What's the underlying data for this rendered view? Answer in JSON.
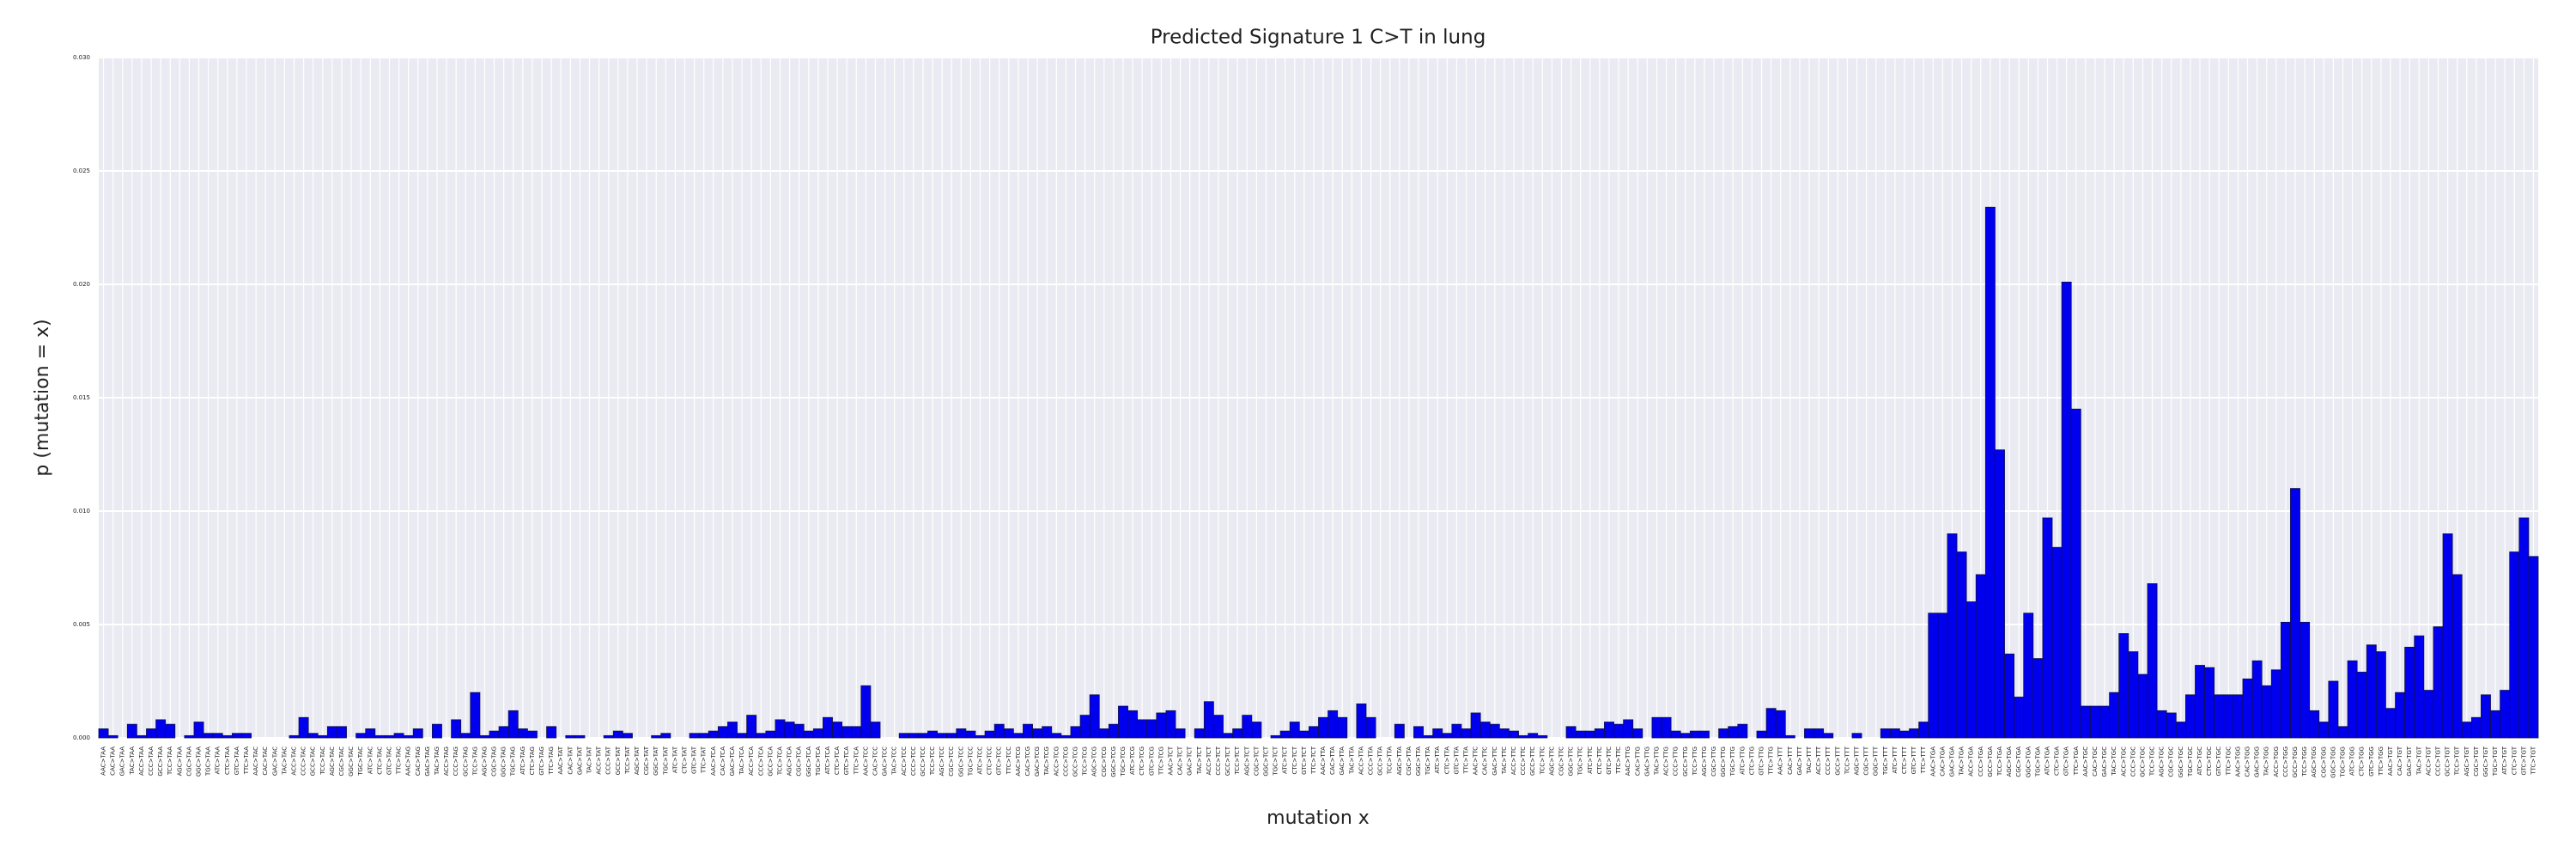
{
  "chart_data": {
    "type": "bar",
    "title": "Predicted Signature 1 C>T in lung",
    "xlabel": "mutation x",
    "ylabel": "p (mutation = x)",
    "color": "#0000ee",
    "grid": true,
    "ylim": [
      0,
      0.03
    ],
    "yticks": [
      {
        "value": 0,
        "label": "0.000"
      },
      {
        "value": 0.005,
        "label": "0.005"
      },
      {
        "value": 0.01,
        "label": "0.010"
      },
      {
        "value": 0.015,
        "label": "0.015"
      },
      {
        "value": 0.02,
        "label": "0.020"
      },
      {
        "value": 0.025,
        "label": "0.025"
      },
      {
        "value": 0.03,
        "label": "0.030"
      }
    ],
    "categories": [
      "AAC>TAA",
      "CAC>TAA",
      "GAC>TAA",
      "TAC>TAA",
      "ACC>TAA",
      "CCC>TAA",
      "GCC>TAA",
      "TCC>TAA",
      "AGC>TAA",
      "CGC>TAA",
      "GGC>TAA",
      "TGC>TAA",
      "ATC>TAA",
      "CTC>TAA",
      "GTC>TAA",
      "TTC>TAA",
      "AAC>TAC",
      "CAC>TAC",
      "GAC>TAC",
      "TAC>TAC",
      "ACC>TAC",
      "CCC>TAC",
      "GCC>TAC",
      "TCC>TAC",
      "AGC>TAC",
      "CGC>TAC",
      "GGC>TAC",
      "TGC>TAC",
      "ATC>TAC",
      "CTC>TAC",
      "GTC>TAC",
      "TTC>TAC",
      "AAC>TAG",
      "CAC>TAG",
      "GAC>TAG",
      "TAC>TAG",
      "ACC>TAG",
      "CCC>TAG",
      "GCC>TAG",
      "TCC>TAG",
      "AGC>TAG",
      "CGC>TAG",
      "GGC>TAG",
      "TGC>TAG",
      "ATC>TAG",
      "CTC>TAG",
      "GTC>TAG",
      "TTC>TAG",
      "AAC>TAT",
      "CAC>TAT",
      "GAC>TAT",
      "TAC>TAT",
      "ACC>TAT",
      "CCC>TAT",
      "GCC>TAT",
      "TCC>TAT",
      "AGC>TAT",
      "CGC>TAT",
      "GGC>TAT",
      "TGC>TAT",
      "ATC>TAT",
      "CTC>TAT",
      "GTC>TAT",
      "TTC>TAT",
      "AAC>TCA",
      "CAC>TCA",
      "GAC>TCA",
      "TAC>TCA",
      "ACC>TCA",
      "CCC>TCA",
      "GCC>TCA",
      "TCC>TCA",
      "AGC>TCA",
      "CGC>TCA",
      "GGC>TCA",
      "TGC>TCA",
      "ATC>TCA",
      "CTC>TCA",
      "GTC>TCA",
      "TTC>TCA",
      "AAC>TCC",
      "CAC>TCC",
      "GAC>TCC",
      "TAC>TCC",
      "ACC>TCC",
      "CCC>TCC",
      "GCC>TCC",
      "TCC>TCC",
      "AGC>TCC",
      "CGC>TCC",
      "GGC>TCC",
      "TGC>TCC",
      "ATC>TCC",
      "CTC>TCC",
      "GTC>TCC",
      "TTC>TCC",
      "AAC>TCG",
      "CAC>TCG",
      "GAC>TCG",
      "TAC>TCG",
      "ACC>TCG",
      "CCC>TCG",
      "GCC>TCG",
      "TCC>TCG",
      "AGC>TCG",
      "CGC>TCG",
      "GGC>TCG",
      "TGC>TCG",
      "ATC>TCG",
      "CTC>TCG",
      "GTC>TCG",
      "TTC>TCG",
      "AAC>TCT",
      "CAC>TCT",
      "GAC>TCT",
      "TAC>TCT",
      "ACC>TCT",
      "CCC>TCT",
      "GCC>TCT",
      "TCC>TCT",
      "AGC>TCT",
      "CGC>TCT",
      "GGC>TCT",
      "TGC>TCT",
      "ATC>TCT",
      "CTC>TCT",
      "GTC>TCT",
      "TTC>TCT",
      "AAC>TTA",
      "CAC>TTA",
      "GAC>TTA",
      "TAC>TTA",
      "ACC>TTA",
      "CCC>TTA",
      "GCC>TTA",
      "TCC>TTA",
      "AGC>TTA",
      "CGC>TTA",
      "GGC>TTA",
      "TGC>TTA",
      "ATC>TTA",
      "CTC>TTA",
      "GTC>TTA",
      "TTC>TTA",
      "AAC>TTC",
      "CAC>TTC",
      "GAC>TTC",
      "TAC>TTC",
      "ACC>TTC",
      "CCC>TTC",
      "GCC>TTC",
      "TCC>TTC",
      "AGC>TTC",
      "CGC>TTC",
      "GGC>TTC",
      "TGC>TTC",
      "ATC>TTC",
      "CTC>TTC",
      "GTC>TTC",
      "TTC>TTC",
      "AAC>TTG",
      "CAC>TTG",
      "GAC>TTG",
      "TAC>TTG",
      "ACC>TTG",
      "CCC>TTG",
      "GCC>TTG",
      "TCC>TTG",
      "AGC>TTG",
      "CGC>TTG",
      "GGC>TTG",
      "TGC>TTG",
      "ATC>TTG",
      "CTC>TTG",
      "GTC>TTG",
      "TTC>TTG",
      "AAC>TTT",
      "CAC>TTT",
      "GAC>TTT",
      "TAC>TTT",
      "ACC>TTT",
      "CCC>TTT",
      "GCC>TTT",
      "TCC>TTT",
      "AGC>TTT",
      "CGC>TTT",
      "GGC>TTT",
      "TGC>TTT",
      "ATC>TTT",
      "CTC>TTT",
      "GTC>TTT",
      "TTC>TTT",
      "AAC>TGA",
      "CAC>TGA",
      "GAC>TGA",
      "TAC>TGA",
      "ACC>TGA",
      "CCC>TGA",
      "GCC>TGA",
      "TCC>TGA",
      "AGC>TGA",
      "CGC>TGA",
      "GGC>TGA",
      "TGC>TGA",
      "ATC>TGA",
      "CTC>TGA",
      "GTC>TGA",
      "TTC>TGA",
      "AAC>TGC",
      "CAC>TGC",
      "GAC>TGC",
      "TAC>TGC",
      "ACC>TGC",
      "CCC>TGC",
      "GCC>TGC",
      "TCC>TGC",
      "AGC>TGC",
      "CGC>TGC",
      "GGC>TGC",
      "TGC>TGC",
      "ATC>TGC",
      "CTC>TGC",
      "GTC>TGC",
      "TTC>TGC",
      "AAC>TGG",
      "CAC>TGG",
      "GAC>TGG",
      "TAC>TGG",
      "ACC>TGG",
      "CCC>TGG",
      "GCC>TGG",
      "TCC>TGG",
      "AGC>TGG",
      "CGC>TGG",
      "GGC>TGG",
      "TGC>TGG",
      "ATC>TGG",
      "CTC>TGG",
      "GTC>TGG",
      "TTC>TGG",
      "AAC>TGT",
      "CAC>TGT",
      "GAC>TGT",
      "TAC>TGT",
      "ACC>TGT",
      "CCC>TGT",
      "GCC>TGT",
      "TCC>TGT",
      "AGC>TGT",
      "CGC>TGT",
      "GGC>TGT",
      "TGC>TGT",
      "ATC>TGT",
      "CTC>TGT",
      "GTC>TGT",
      "TTC>TGT"
    ],
    "values": [
      0.0004,
      0.0001,
      0,
      0.0006,
      0.0001,
      0.0004,
      0.0008,
      0.0006,
      0,
      0.0001,
      0.0007,
      0.0002,
      0.0002,
      0.0001,
      0.0002,
      0.0002,
      0,
      0,
      0,
      0,
      0.0001,
      0.0009,
      0.0002,
      0.0001,
      0.0005,
      0.0005,
      0,
      0.0002,
      0.0004,
      0.0001,
      0.0001,
      0.0002,
      0.0001,
      0.0004,
      0,
      0.0006,
      0,
      0.0008,
      0.0002,
      0.002,
      0.0001,
      0.0003,
      0.0005,
      0.0012,
      0.0004,
      0.0003,
      0,
      0.0005,
      0,
      0.0001,
      0.0001,
      0,
      0,
      0.0001,
      0.0003,
      0.0002,
      0,
      0,
      0.0001,
      0.0002,
      0,
      0,
      0.0002,
      0.0002,
      0.0003,
      0.0005,
      0.0007,
      0.0002,
      0.001,
      0.0002,
      0.0003,
      0.0008,
      0.0007,
      0.0006,
      0.0003,
      0.0004,
      0.0009,
      0.0007,
      0.0005,
      0.0005,
      0.0023,
      0.0007,
      0,
      0,
      0.0002,
      0.0002,
      0.0002,
      0.0003,
      0.0002,
      0.0002,
      0.0004,
      0.0003,
      0.0001,
      0.0003,
      0.0006,
      0.0004,
      0.0002,
      0.0006,
      0.0004,
      0.0005,
      0.0002,
      0.0001,
      0.0005,
      0.001,
      0.0019,
      0.0004,
      0.0006,
      0.0014,
      0.0012,
      0.0008,
      0.0008,
      0.0011,
      0.0012,
      0.0004,
      0,
      0.0004,
      0.0016,
      0.001,
      0.0002,
      0.0004,
      0.001,
      0.0007,
      0,
      0.0001,
      0.0003,
      0.0007,
      0.0003,
      0.0005,
      0.0009,
      0.0012,
      0.0009,
      0,
      0.0015,
      0.0009,
      0,
      0,
      0.0006,
      0,
      0.0005,
      0.0001,
      0.0004,
      0.0002,
      0.0006,
      0.0004,
      0.0011,
      0.0007,
      0.0006,
      0.0004,
      0.0003,
      0.0001,
      0.0002,
      0.0001,
      0,
      0,
      0.0005,
      0.0003,
      0.0003,
      0.0004,
      0.0007,
      0.0006,
      0.0008,
      0.0004,
      0,
      0.0009,
      0.0009,
      0.0003,
      0.0002,
      0.0003,
      0.0003,
      0,
      0.0004,
      0.0005,
      0.0006,
      0,
      0.0003,
      0.0013,
      0.0012,
      0.0001,
      0,
      0.0004,
      0.0004,
      0.0002,
      0,
      0,
      0.0002,
      0,
      0,
      0.0004,
      0.0004,
      0.0003,
      0.0004,
      0.0007,
      0.0055,
      0.0055,
      0.009,
      0.0082,
      0.006,
      0.0072,
      0.0234,
      0.0127,
      0.0037,
      0.0018,
      0.0055,
      0.0035,
      0.0097,
      0.0084,
      0.0201,
      0.0145,
      0.0014,
      0.0014,
      0.0014,
      0.002,
      0.0046,
      0.0038,
      0.0028,
      0.0068,
      0.0012,
      0.0011,
      0.0007,
      0.0019,
      0.0032,
      0.0031,
      0.0019,
      0.0019,
      0.0019,
      0.0026,
      0.0034,
      0.0023,
      0.003,
      0.0051,
      0.011,
      0.0051,
      0.0012,
      0.0007,
      0.0025,
      0.0005,
      0.0034,
      0.0029,
      0.0041,
      0.0038,
      0.0013,
      0.002,
      0.004,
      0.0045,
      0.0021,
      0.0049,
      0.009,
      0.0072,
      0.0007,
      0.0009,
      0.0019,
      0.0012,
      0.0021,
      0.0082,
      0.0097,
      0.008
    ]
  }
}
